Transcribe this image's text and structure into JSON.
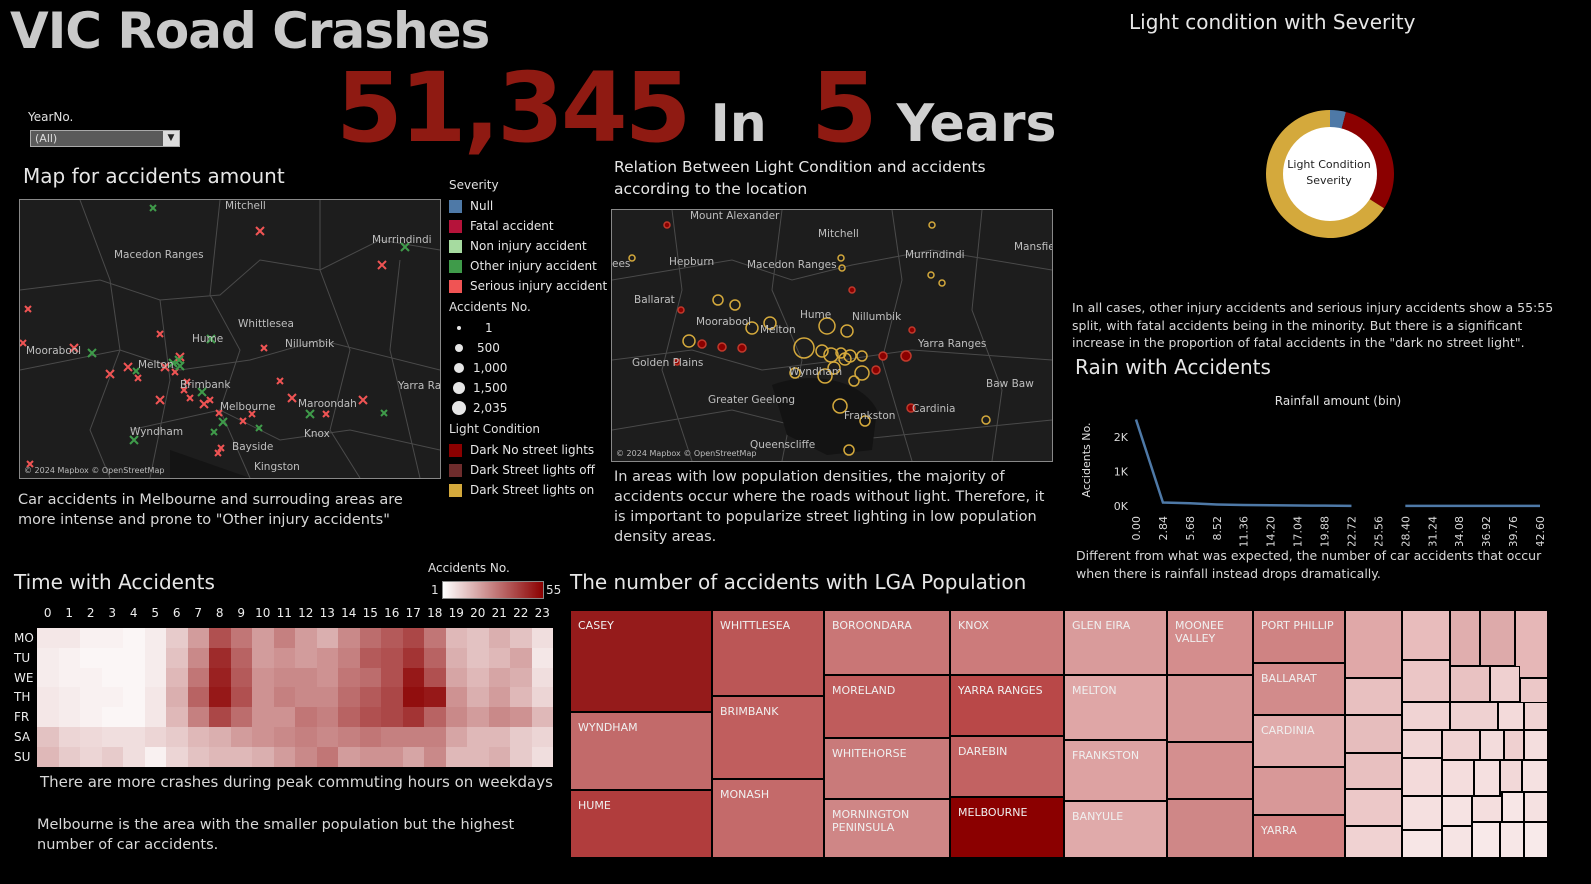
{
  "header": {
    "title": "VIC Road Crashes",
    "kpi_count": "51,345",
    "kpi_in": "In",
    "kpi_years_num": "5",
    "kpi_years": "Years"
  },
  "filter": {
    "label": "YearNo.",
    "value": "(All)"
  },
  "map1": {
    "title": "Map for accidents amount",
    "attribution": "© 2024 Mapbox © OpenStreetMap",
    "places": [
      "Mitchell",
      "Murrindindi",
      "Macedon Ranges",
      "Hume",
      "Whittlesea",
      "Nillumbik",
      "Moorabool",
      "Melton",
      "Brimbank",
      "Maroondah",
      "Yarra Ra",
      "Melbourne",
      "Wyndham",
      "Knox",
      "Bayside",
      "Kingston"
    ],
    "note": "Car accidents in Melbourne and surrouding areas are more intense and prone to \"Other injury accidents\""
  },
  "legend": {
    "severity_title": "Severity",
    "severity": [
      {
        "label": "Null",
        "color": "#4e79a7"
      },
      {
        "label": "Fatal accident",
        "color": "#b5133a"
      },
      {
        "label": "Non injury accident",
        "color": "#a6dba0"
      },
      {
        "label": "Other injury accident",
        "color": "#3f9b4a"
      },
      {
        "label": "Serious injury accident",
        "color": "#f05454"
      }
    ],
    "size_title": "Accidents No.",
    "sizes": [
      "1",
      "500",
      "1,000",
      "1,500",
      "2,035"
    ],
    "light_title": "Light Condition",
    "light": [
      {
        "label": "Dark No street lights",
        "color": "#8b0000"
      },
      {
        "label": "Dark Street lights off",
        "color": "#6e2c2c"
      },
      {
        "label": "Dark Street lights on",
        "color": "#d4a93c"
      }
    ]
  },
  "map2": {
    "title": "Relation Between Light Condition and accidents according to the location",
    "attribution": "© 2024 Mapbox © OpenStreetMap",
    "places": [
      "Mount Alexander",
      "Mitchell",
      "Mansfie",
      "Hepburn",
      "Macedon Ranges",
      "Murrindindi",
      "Ballarat",
      "Moorabool",
      "Hume",
      "Nillumbik",
      "Melton",
      "Yarra Ranges",
      "Golden Plains",
      "Wyndham",
      "Baw Baw",
      "Greater Geelong",
      "Frankston",
      "Cardinia",
      "Queenscliffe",
      "ees"
    ],
    "note": "In areas with low population densities, the majority of accidents occur where the roads without light. Therefore, it is important to popularize street lighting in low population density areas."
  },
  "donut": {
    "title": "Light condition with Severity",
    "center_label": "Light Condition Severity",
    "note": "In all cases, other injury accidents and serious injury accidents show a 55:55 split, with fatal accidents being in the minority. But there is a significant increase in the proportion of fatal accidents in the \"dark no street light\"."
  },
  "rain": {
    "title": "Rain with Accidents",
    "note": "Different from what was expected, the number of car accidents that occur when there is rainfall instead drops dramatically."
  },
  "heatmap": {
    "title": "Time with Accidents",
    "legend_title": "Accidents No.",
    "legend_min": "1",
    "legend_max": "55",
    "hours": [
      "0",
      "1",
      "2",
      "3",
      "4",
      "5",
      "6",
      "7",
      "8",
      "9",
      "10",
      "11",
      "12",
      "13",
      "14",
      "15",
      "16",
      "17",
      "18",
      "19",
      "20",
      "21",
      "22",
      "23"
    ],
    "days": [
      "MO",
      "TU",
      "WE",
      "TH",
      "FR",
      "SA",
      "SU"
    ],
    "values": [
      [
        6,
        6,
        4,
        4,
        3,
        5,
        12,
        22,
        38,
        30,
        22,
        28,
        22,
        18,
        26,
        32,
        36,
        40,
        30,
        16,
        14,
        18,
        14,
        8
      ],
      [
        5,
        4,
        3,
        3,
        3,
        5,
        14,
        26,
        46,
        34,
        22,
        24,
        22,
        24,
        28,
        36,
        38,
        44,
        34,
        18,
        14,
        16,
        20,
        6
      ],
      [
        5,
        4,
        4,
        3,
        3,
        5,
        16,
        30,
        48,
        36,
        24,
        26,
        26,
        24,
        30,
        32,
        38,
        50,
        38,
        20,
        16,
        20,
        18,
        8
      ],
      [
        6,
        5,
        4,
        4,
        3,
        6,
        18,
        34,
        50,
        38,
        24,
        28,
        26,
        26,
        32,
        36,
        40,
        52,
        50,
        24,
        18,
        22,
        16,
        10
      ],
      [
        6,
        5,
        4,
        3,
        3,
        6,
        16,
        28,
        40,
        32,
        24,
        24,
        30,
        28,
        34,
        38,
        40,
        44,
        34,
        26,
        22,
        26,
        24,
        16
      ],
      [
        14,
        10,
        9,
        8,
        8,
        10,
        12,
        16,
        18,
        22,
        24,
        26,
        28,
        26,
        28,
        30,
        28,
        28,
        28,
        20,
        16,
        16,
        12,
        10
      ],
      [
        16,
        12,
        10,
        12,
        8,
        4,
        10,
        14,
        16,
        16,
        18,
        22,
        26,
        30,
        22,
        24,
        24,
        20,
        26,
        16,
        16,
        18,
        12,
        8
      ]
    ],
    "note1": "There are more crashes during peak commuting hours on weekdays",
    "note2": "Melbourne is the area with the smaller population but the highest number of car accidents."
  },
  "treemap": {
    "title": "The number of accidents with LGA Population",
    "labels": [
      "CASEY",
      "WYNDHAM",
      "HUME",
      "WHITTLESEA",
      "BRIMBANK",
      "MONASH",
      "BOROONDARA",
      "MORELAND",
      "WHITEHORSE",
      "MORNINGTON PENINSULA",
      "KNOX",
      "YARRA RANGES",
      "DAREBIN",
      "MELBOURNE",
      "GLEN EIRA",
      "MELTON",
      "FRANKSTON",
      "BANYULE",
      "MOONEE VALLEY",
      "PORT PHILLIP",
      "BALLARAT",
      "CARDINIA",
      "YARRA"
    ]
  },
  "chart_data": [
    {
      "type": "line",
      "title": "Rainfall amount (bin)",
      "xlabel": "",
      "ylabel": "Accidents No.",
      "x": [
        0.0,
        1.42,
        2.84,
        4.26,
        5.68,
        7.1,
        8.52,
        9.94,
        11.36,
        12.78,
        14.2,
        15.62,
        17.04,
        18.46,
        19.88,
        21.3,
        22.72,
        28.4,
        29.82,
        31.24,
        32.66,
        34.08,
        35.5,
        36.92,
        38.34,
        39.76,
        41.18,
        42.6
      ],
      "y": [
        2500,
        1300,
        100,
        90,
        80,
        60,
        45,
        35,
        30,
        25,
        20,
        18,
        15,
        12,
        10,
        8,
        5,
        5,
        5,
        5,
        5,
        5,
        5,
        5,
        5,
        5,
        5,
        5
      ],
      "x_ticks": [
        "0.00",
        "2.84",
        "5.68",
        "8.52",
        "11.36",
        "14.20",
        "17.04",
        "19.88",
        "22.72",
        "25.56",
        "28.40",
        "31.24",
        "34.08",
        "36.92",
        "39.76",
        "42.60"
      ],
      "y_ticks": [
        "0K",
        "1K",
        "2K"
      ],
      "ylim": [
        0,
        2600
      ],
      "color": "#4e79a7"
    },
    {
      "type": "pie",
      "title": "Light condition with Severity",
      "labels": [
        "Null",
        "Fatal accident",
        "Dark Street lights on"
      ],
      "values": [
        4,
        30,
        66
      ],
      "colors": [
        "#4e79a7",
        "#8b0000",
        "#d4a93c"
      ]
    }
  ]
}
